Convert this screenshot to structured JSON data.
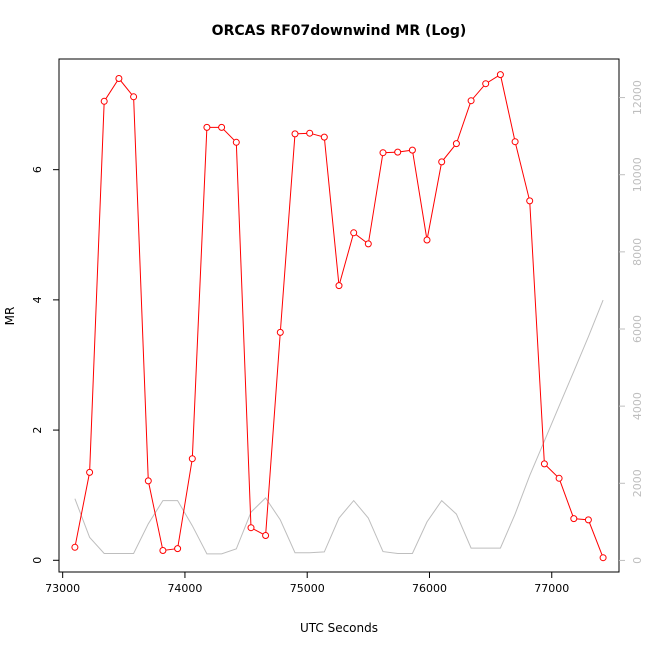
{
  "chart_data": {
    "type": "line",
    "title": "ORCAS RF07downwind MR (Log)",
    "xlabel": "UTC Seconds",
    "ylabel": "MR",
    "y2label": "",
    "xlim": [
      72970,
      77550
    ],
    "ylim": [
      -0.18,
      7.7
    ],
    "y2lim": [
      -300,
      13000
    ],
    "x_ticks": [
      73000,
      74000,
      75000,
      76000,
      77000
    ],
    "x_tick_labels": [
      "73000",
      "74000",
      "75000",
      "76000",
      "77000"
    ],
    "y_ticks": [
      0,
      2,
      4,
      6
    ],
    "y_tick_labels": [
      "0",
      "2",
      "4",
      "6"
    ],
    "y2_ticks": [
      0,
      2000,
      4000,
      6000,
      8000,
      10000,
      12000
    ],
    "y2_tick_labels": [
      "0",
      "2000",
      "4000",
      "6000",
      "8000",
      "10000",
      "12000"
    ],
    "grid": false,
    "legend": "none",
    "colors": {
      "mr": "#ff0000",
      "secondary": "#bebebe",
      "axes": "#000000",
      "right_axis": "#bebebe"
    },
    "series": [
      {
        "axis": "left",
        "style": "line+circle",
        "color": "#ff0000",
        "x": [
          73100,
          73220,
          73340,
          73460,
          73580,
          73700,
          73820,
          73940,
          74060,
          74180,
          74300,
          74420,
          74540,
          74660,
          74780,
          74900,
          75020,
          75140,
          75260,
          75380,
          75500,
          75620,
          75740,
          75860,
          75980,
          76100,
          76220,
          76340,
          76460,
          76580,
          76700,
          76820,
          76940,
          77060,
          77180,
          77300,
          77420
        ],
        "y": [
          0.2,
          1.35,
          7.05,
          7.4,
          7.12,
          1.22,
          0.15,
          0.18,
          1.56,
          6.65,
          6.65,
          6.42,
          0.5,
          0.38,
          3.5,
          6.55,
          6.56,
          6.5,
          4.22,
          5.03,
          4.86,
          6.26,
          6.27,
          6.3,
          4.92,
          6.12,
          6.4,
          7.06,
          7.32,
          7.46,
          6.43,
          5.52,
          1.48,
          1.26,
          0.64,
          0.62,
          0.04
        ]
      },
      {
        "axis": "right",
        "style": "line",
        "color": "#bebebe",
        "x": [
          73100,
          73220,
          73340,
          73460,
          73580,
          73700,
          73820,
          73940,
          74060,
          74180,
          74300,
          74420,
          74540,
          74660,
          74780,
          74900,
          75020,
          75140,
          75260,
          75380,
          75500,
          75620,
          75740,
          75860,
          75980,
          76100,
          76220,
          76340,
          76460,
          76580,
          76700,
          76820,
          76940,
          77060,
          77180,
          77300,
          77420
        ],
        "y": [
          1600,
          600,
          180,
          180,
          180,
          950,
          1550,
          1550,
          900,
          170,
          170,
          300,
          1250,
          1620,
          1050,
          200,
          200,
          220,
          1100,
          1550,
          1100,
          230,
          180,
          180,
          1000,
          1550,
          1200,
          320,
          320,
          320,
          1200,
          2200,
          3100,
          4000,
          4900,
          5800,
          6750
        ]
      }
    ]
  }
}
